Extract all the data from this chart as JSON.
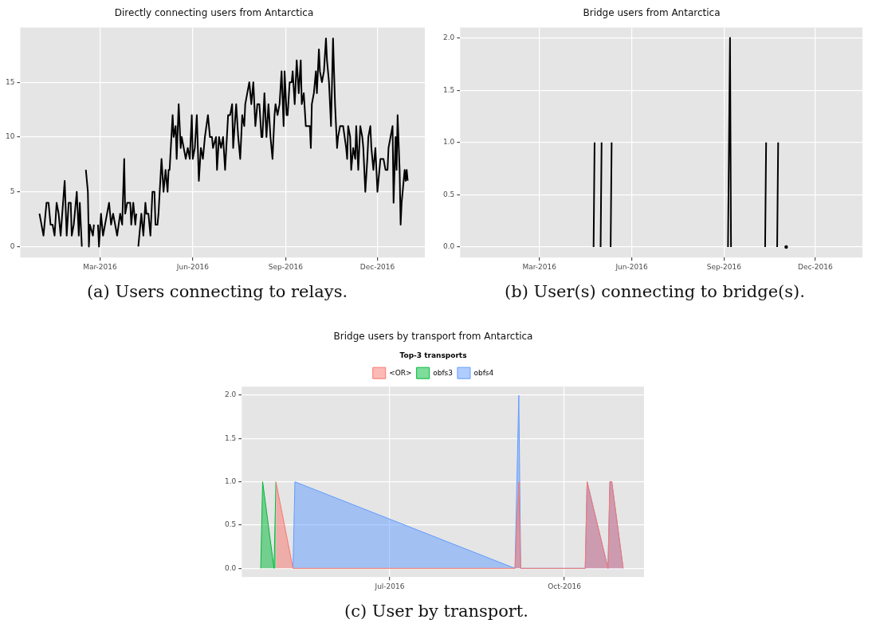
{
  "chart_data": [
    {
      "type": "line",
      "title": "Directly connecting users from Antarctica",
      "annotations": [
        "(a) Users connecting to relays."
      ],
      "grid": true,
      "xlim": [
        "2015-12-13",
        "2017-01-17"
      ],
      "ylim": [
        -1,
        20
      ],
      "yticks": [
        0,
        5,
        10,
        15
      ],
      "xticks": [
        {
          "value": "2016-03-01",
          "label": "Mar-2016"
        },
        {
          "value": "2016-06-01",
          "label": "Jun-2016"
        },
        {
          "value": "2016-09-01",
          "label": "Sep-2016"
        },
        {
          "value": "2016-12-01",
          "label": "Dec-2016"
        }
      ],
      "series": [
        {
          "color": "#000000",
          "x": [
            "2016-01-01",
            "2016-01-03",
            "2016-01-05",
            "2016-01-08",
            "2016-01-10",
            "2016-01-12",
            "2016-01-14",
            "2016-01-16",
            "2016-01-18",
            "2016-01-20",
            "2016-01-22",
            "2016-01-26",
            "2016-01-28",
            "2016-01-30",
            "2016-02-01",
            "2016-02-02",
            "2016-02-04",
            "2016-02-07",
            "2016-02-09",
            "2016-02-10",
            "2016-02-12",
            "2016-02-13",
            "2016-02-16",
            "2016-02-18",
            "2016-02-19",
            "2016-02-20",
            "2016-02-23",
            "2016-02-24",
            "2016-02-25",
            "2016-02-28",
            "2016-02-29",
            "2016-03-02",
            "2016-03-04",
            "2016-03-06",
            "2016-03-08",
            "2016-03-10",
            "2016-03-12",
            "2016-03-14",
            "2016-03-16",
            "2016-03-18",
            "2016-03-21",
            "2016-03-23",
            "2016-03-25",
            "2016-03-26",
            "2016-03-28",
            "2016-03-31",
            "2016-04-01",
            "2016-04-03",
            "2016-04-05",
            "2016-04-06",
            "2016-04-07",
            "2016-04-08",
            "2016-04-10",
            "2016-04-11",
            "2016-04-13",
            "2016-04-15",
            "2016-04-16",
            "2016-04-18",
            "2016-04-20",
            "2016-04-22",
            "2016-04-24",
            "2016-04-25",
            "2016-04-27",
            "2016-04-28",
            "2016-05-01",
            "2016-05-03",
            "2016-05-05",
            "2016-05-07",
            "2016-05-08",
            "2016-05-09",
            "2016-05-12",
            "2016-05-13",
            "2016-05-15",
            "2016-05-16",
            "2016-05-18",
            "2016-05-20",
            "2016-05-21",
            "2016-05-23",
            "2016-05-25",
            "2016-05-27",
            "2016-05-29",
            "2016-05-31",
            "2016-06-01",
            "2016-06-03",
            "2016-06-05",
            "2016-06-07",
            "2016-06-09",
            "2016-06-11",
            "2016-06-13",
            "2016-06-16",
            "2016-06-18",
            "2016-06-20",
            "2016-06-21",
            "2016-06-24",
            "2016-06-25",
            "2016-06-27",
            "2016-06-29",
            "2016-07-01",
            "2016-07-03",
            "2016-07-06",
            "2016-07-08",
            "2016-07-10",
            "2016-07-11",
            "2016-07-14",
            "2016-07-16",
            "2016-07-18",
            "2016-07-20",
            "2016-07-22",
            "2016-07-23",
            "2016-07-25",
            "2016-07-27",
            "2016-07-29",
            "2016-07-31",
            "2016-08-02",
            "2016-08-04",
            "2016-08-06",
            "2016-08-08",
            "2016-08-09",
            "2016-08-11",
            "2016-08-13",
            "2016-08-15",
            "2016-08-17",
            "2016-08-19",
            "2016-08-21",
            "2016-08-22",
            "2016-08-24",
            "2016-08-26",
            "2016-08-28",
            "2016-08-30",
            "2016-08-31",
            "2016-09-02",
            "2016-09-03",
            "2016-09-05",
            "2016-09-07",
            "2016-09-08",
            "2016-09-10",
            "2016-09-12",
            "2016-09-14",
            "2016-09-16",
            "2016-09-17",
            "2016-09-19",
            "2016-09-21",
            "2016-09-23",
            "2016-09-25",
            "2016-09-26",
            "2016-09-27",
            "2016-09-29",
            "2016-10-01",
            "2016-10-02",
            "2016-10-04",
            "2016-10-05",
            "2016-10-07",
            "2016-10-09",
            "2016-10-11",
            "2016-10-12",
            "2016-10-14",
            "2016-10-16",
            "2016-10-18",
            "2016-10-20",
            "2016-10-22",
            "2016-10-23",
            "2016-10-25",
            "2016-10-26",
            "2016-10-28",
            "2016-10-31",
            "2016-11-01",
            "2016-11-02",
            "2016-11-04",
            "2016-11-05",
            "2016-11-07",
            "2016-11-09",
            "2016-11-10",
            "2016-11-12",
            "2016-11-14",
            "2016-11-16",
            "2016-11-17",
            "2016-11-19",
            "2016-11-21",
            "2016-11-22",
            "2016-11-24",
            "2016-11-25",
            "2016-11-27",
            "2016-11-29",
            "2016-12-01",
            "2016-12-03",
            "2016-12-04",
            "2016-12-07",
            "2016-12-09",
            "2016-12-11",
            "2016-12-12",
            "2016-12-14",
            "2016-12-16",
            "2016-12-17",
            "2016-12-19",
            "2016-12-20",
            "2016-12-21",
            "2016-12-23",
            "2016-12-24",
            "2016-12-25",
            "2016-12-26",
            "2016-12-28",
            "2016-12-29",
            "2016-12-30",
            "2016-12-31"
          ],
          "values": [
            3,
            2,
            1,
            4,
            4,
            2,
            2,
            1,
            4,
            3,
            1,
            6,
            1,
            4,
            4,
            1,
            2,
            5,
            1,
            4,
            0,
            null,
            7,
            5,
            0,
            2,
            1,
            2,
            null,
            2,
            0,
            3,
            1,
            2,
            3,
            4,
            2,
            3,
            2,
            1,
            3,
            2,
            8,
            3,
            4,
            4,
            2,
            4,
            2,
            3,
            null,
            0,
            2,
            3,
            1,
            4,
            3,
            3,
            1,
            5,
            5,
            2,
            2,
            3,
            8,
            5,
            7,
            5,
            7,
            7,
            12,
            10,
            11,
            8,
            13,
            9,
            10,
            9,
            8,
            9,
            8,
            12,
            8,
            9,
            12,
            6,
            9,
            8,
            10,
            12,
            10,
            10,
            9,
            10,
            7,
            10,
            9,
            10,
            7,
            12,
            12,
            13,
            9,
            13,
            10,
            8,
            12,
            11,
            13,
            14,
            15,
            13,
            15,
            11,
            13,
            13,
            10,
            10,
            14,
            10,
            13,
            10,
            8,
            12,
            13,
            12,
            13,
            16,
            11,
            16,
            12,
            12,
            15,
            15,
            16,
            13,
            17,
            14,
            17,
            13,
            14,
            11,
            11,
            11,
            9,
            13,
            14,
            16,
            14,
            18,
            16,
            15,
            16,
            19,
            17,
            15,
            11,
            19,
            13,
            9,
            10,
            11,
            11,
            11,
            9,
            8,
            11,
            10,
            7,
            9,
            8,
            11,
            7,
            11,
            10,
            9,
            5,
            8,
            10,
            11,
            9,
            7,
            9,
            5,
            7,
            8,
            8,
            7,
            7,
            9,
            10,
            11,
            4,
            10,
            7,
            12,
            7,
            2,
            4,
            5,
            7,
            6,
            7,
            6
          ]
        }
      ]
    },
    {
      "type": "line",
      "title": "Bridge users from Antarctica",
      "annotations": [
        "(b) User(s) connecting to bridge(s)."
      ],
      "grid": true,
      "xlim": [
        "2015-12-13",
        "2017-01-17"
      ],
      "ylim": [
        -0.1,
        2.1
      ],
      "yticks": [
        {
          "value": 0,
          "label": "0.0"
        },
        {
          "value": 0.5,
          "label": "0.5"
        },
        {
          "value": 1,
          "label": "1.0"
        },
        {
          "value": 1.5,
          "label": "1.5"
        },
        {
          "value": 2,
          "label": "2.0"
        }
      ],
      "xticks": [
        {
          "value": "2016-03-01",
          "label": "Mar-2016"
        },
        {
          "value": "2016-06-01",
          "label": "Jun-2016"
        },
        {
          "value": "2016-09-01",
          "label": "Sep-2016"
        },
        {
          "value": "2016-12-01",
          "label": "Dec-2016"
        }
      ],
      "series": [
        {
          "color": "#000000",
          "x": [
            "2016-04-24",
            "2016-04-25",
            "2016-04-26",
            "2016-05-01",
            "2016-05-02",
            "2016-05-03",
            "2016-05-11",
            "2016-05-12",
            "2016-05-13",
            "2016-09-05",
            "2016-09-07",
            "2016-09-08",
            "2016-09-09",
            "2016-10-12",
            "2016-10-13",
            "2016-10-14",
            "2016-10-24",
            "2016-10-25",
            "2016-10-26",
            "2016-11-02"
          ],
          "values": [
            0,
            1,
            null,
            0,
            1,
            null,
            0,
            1,
            null,
            0,
            2,
            0,
            null,
            0,
            1,
            null,
            0,
            1,
            null,
            0
          ]
        }
      ]
    },
    {
      "type": "area",
      "title": "Bridge users by transport from Antarctica",
      "annotations": [
        "(c) User by transport."
      ],
      "grid": true,
      "legend": "top",
      "legend_title": "Top-3 transports",
      "xlim": [
        "2016-04-14",
        "2016-11-12"
      ],
      "ylim": [
        -0.1,
        2.1
      ],
      "yticks": [
        {
          "value": 0,
          "label": "0.0"
        },
        {
          "value": 0.5,
          "label": "0.5"
        },
        {
          "value": 1,
          "label": "1.0"
        },
        {
          "value": 1.5,
          "label": "1.5"
        },
        {
          "value": 2,
          "label": "2.0"
        }
      ],
      "xticks": [
        {
          "value": "2016-07-01",
          "label": "Jul-2016"
        },
        {
          "value": "2016-10-01",
          "label": "Oct-2016"
        }
      ],
      "series": [
        {
          "name": "<OR>",
          "color": "#f8766d",
          "x": [
            "2016-05-02",
            "2016-05-11",
            "2016-09-05",
            "2016-09-07",
            "2016-09-08",
            "2016-10-12",
            "2016-10-13",
            "2016-10-24",
            "2016-10-25",
            "2016-10-26",
            "2016-11-01"
          ],
          "values": [
            1,
            0,
            0,
            1,
            0,
            0,
            1,
            0,
            1,
            1,
            0
          ]
        },
        {
          "name": "obfs3",
          "color": "#00ba38",
          "x": [
            "2016-04-24",
            "2016-04-25",
            "2016-05-01",
            "2016-05-02"
          ],
          "values": [
            0,
            1,
            0,
            1
          ]
        },
        {
          "name": "obfs4",
          "color": "#619cff",
          "x": [
            "2016-05-11",
            "2016-05-12",
            "2016-09-05",
            "2016-09-07",
            "2016-09-08",
            "2016-10-12",
            "2016-10-13",
            "2016-10-24",
            "2016-10-25",
            "2016-10-26",
            "2016-11-01"
          ],
          "values": [
            0,
            1,
            0,
            2,
            0,
            0,
            1,
            0,
            1,
            1,
            0
          ]
        }
      ]
    }
  ]
}
